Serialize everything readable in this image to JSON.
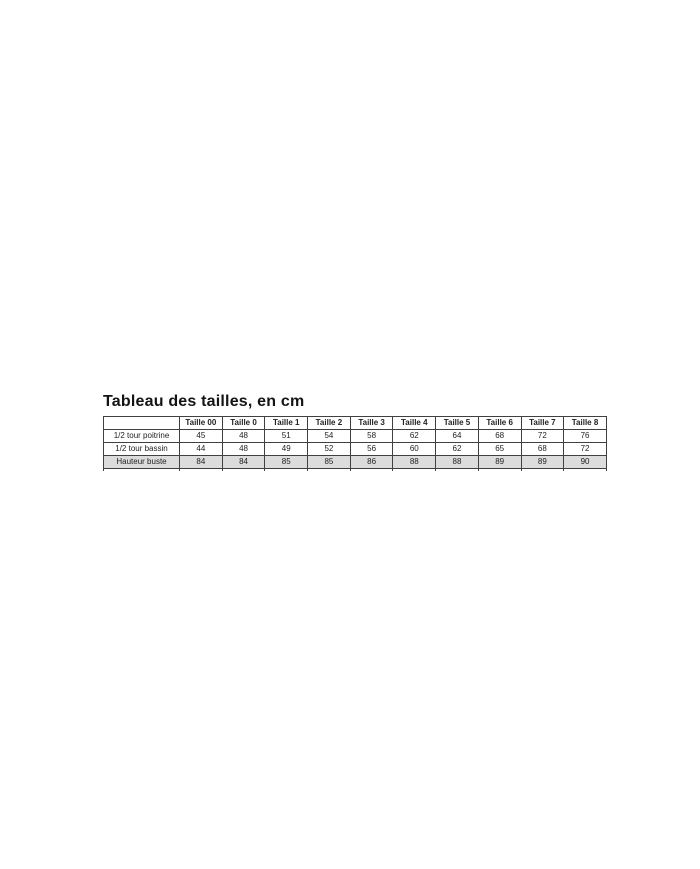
{
  "document": {
    "title": "Tableau des tailles, en cm"
  },
  "chart_data": {
    "type": "table",
    "title": "Tableau des tailles, en cm",
    "columns": [
      "",
      "Taille 00",
      "Taille 0",
      "Taille 1",
      "Taille 2",
      "Taille 3",
      "Taille 4",
      "Taille 5",
      "Taille 6",
      "Taille 7",
      "Taille 8"
    ],
    "rows": [
      {
        "label": "1/2 tour poitrine",
        "values": [
          "45",
          "48",
          "51",
          "54",
          "58",
          "62",
          "64",
          "68",
          "72",
          "76"
        ],
        "shaded": false
      },
      {
        "label": "1/2 tour bassin",
        "values": [
          "44",
          "48",
          "49",
          "52",
          "56",
          "60",
          "62",
          "65",
          "68",
          "72"
        ],
        "shaded": false
      },
      {
        "label": "Hauteur buste",
        "values": [
          "84",
          "84",
          "85",
          "85",
          "86",
          "88",
          "88",
          "89",
          "89",
          "90"
        ],
        "shaded": true
      }
    ]
  },
  "colors": {
    "page_background": "#ffffff",
    "text": "#222222",
    "table_border": "#404040",
    "shaded_row_background": "#dcdcdc"
  }
}
